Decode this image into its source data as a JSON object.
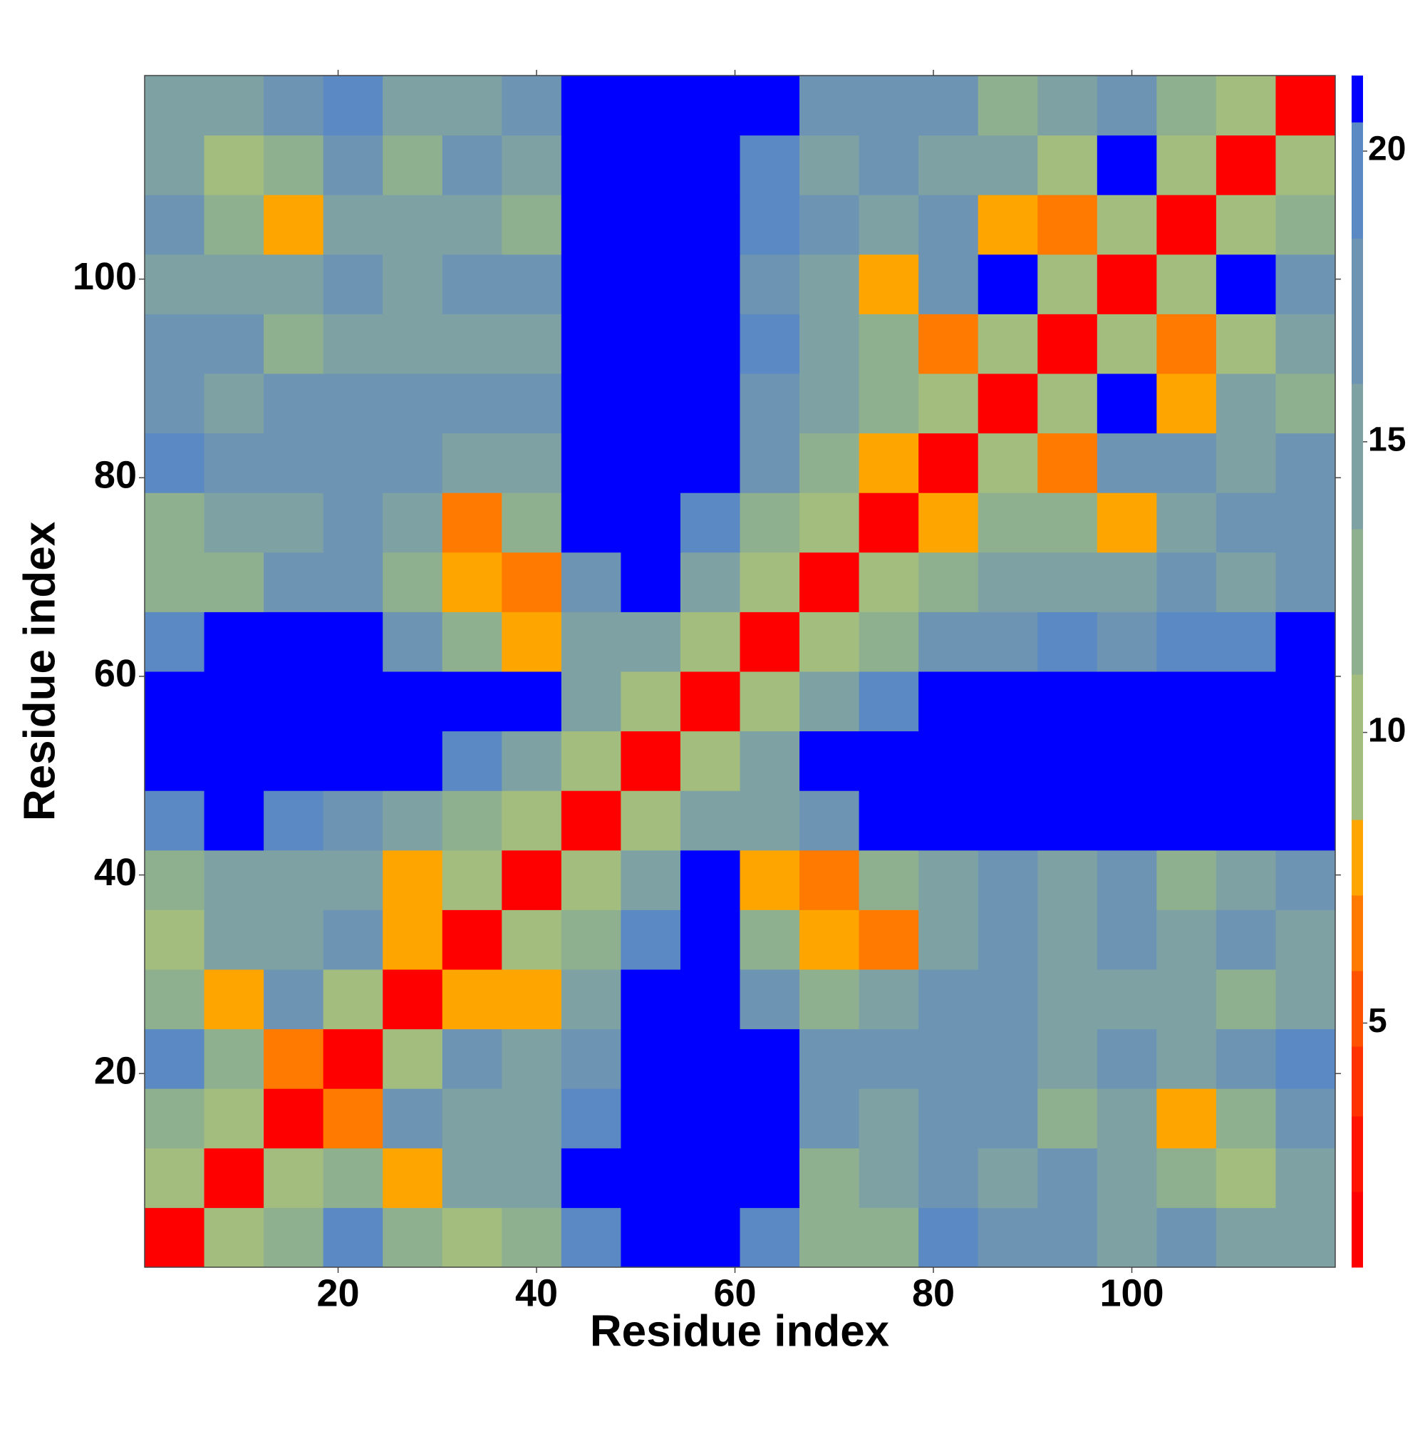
{
  "chart_data": {
    "type": "heatmap",
    "xlabel": "Residue index",
    "ylabel": "Residue index",
    "xlim": [
      0.5,
      120.5
    ],
    "ylim": [
      0.5,
      120.5
    ],
    "xticks": [
      20,
      40,
      60,
      80,
      100
    ],
    "yticks": [
      20,
      40,
      60,
      80,
      100
    ],
    "xbins": [
      0.5,
      6.5,
      12.5,
      18.5,
      24.5,
      30.5,
      36.5,
      42.5,
      48.5,
      54.5,
      60.5,
      66.5,
      72.5,
      78.5,
      84.5,
      90.5,
      96.5,
      102.5,
      108.5,
      114.5,
      120.5
    ],
    "ybins": [
      0.5,
      6.5,
      12.5,
      18.5,
      24.5,
      30.5,
      36.5,
      42.5,
      48.5,
      54.5,
      60.5,
      66.5,
      72.5,
      78.5,
      84.5,
      90.5,
      96.5,
      102.5,
      108.5,
      114.5,
      120.5
    ],
    "zlim": [
      0.8,
      21.3
    ],
    "zticks": [
      5,
      10,
      15,
      20
    ],
    "colormap": {
      "levels": [
        2.1,
        3.4,
        4.6,
        5.9,
        7.2,
        8.5,
        11,
        13.5,
        16,
        18.5,
        20.5
      ],
      "colors": [
        "#ff0000",
        "#ff1400",
        "#ff3200",
        "#ff5200",
        "#ff7a00",
        "#ffa500",
        "#a3bd7f",
        "#8fb08f",
        "#7ea2a3",
        "#6d95b3",
        "#5b89c3",
        "#0000ff"
      ]
    },
    "z": [
      [
        2,
        9,
        13,
        19,
        13,
        9,
        12,
        20,
        21,
        21,
        19,
        11,
        12,
        19,
        16,
        17,
        15,
        16,
        14,
        15
      ],
      [
        9,
        2,
        9,
        12,
        8,
        15,
        14,
        21,
        21,
        21,
        21,
        13,
        14,
        17,
        15,
        16,
        14,
        12,
        10,
        14
      ],
      [
        13,
        9,
        2,
        7,
        17,
        15,
        14,
        20,
        21,
        21,
        21,
        16,
        15,
        16,
        18,
        13,
        14,
        8,
        13,
        16
      ],
      [
        19,
        12,
        7,
        2,
        9,
        17,
        14,
        18,
        21,
        21,
        21,
        18,
        16,
        17,
        17,
        15,
        16,
        15,
        17,
        20
      ],
      [
        13,
        8,
        17,
        9,
        2,
        8,
        8,
        15,
        21,
        21,
        16,
        12,
        14,
        16,
        17,
        14,
        14,
        15,
        13,
        14
      ],
      [
        9,
        15,
        15,
        17,
        8,
        2,
        9,
        12,
        19,
        21,
        13,
        8,
        7,
        14,
        18,
        15,
        17,
        14,
        16,
        15
      ],
      [
        12,
        14,
        14,
        14,
        8,
        9,
        2,
        9,
        14,
        21,
        8,
        7,
        11,
        15,
        17,
        14,
        16,
        13,
        15,
        16
      ],
      [
        20,
        21,
        20,
        18,
        15,
        12,
        9,
        2,
        9,
        14,
        15,
        16,
        21,
        21,
        21,
        21,
        21,
        21,
        21,
        21
      ],
      [
        21,
        21,
        21,
        21,
        21,
        19,
        14,
        9,
        2,
        9,
        15,
        21,
        21,
        21,
        21,
        21,
        21,
        21,
        21,
        21
      ],
      [
        21,
        21,
        21,
        21,
        21,
        21,
        21,
        14,
        9,
        2,
        9,
        15,
        19,
        21,
        21,
        21,
        21,
        21,
        21,
        21
      ],
      [
        19,
        21,
        21,
        21,
        16,
        13,
        8,
        15,
        15,
        9,
        2,
        9,
        13,
        16,
        17,
        19,
        18,
        19,
        20,
        21
      ],
      [
        11,
        13,
        16,
        18,
        12,
        8,
        7,
        16,
        21,
        15,
        9,
        2,
        9,
        12,
        14,
        15,
        15,
        16,
        15,
        18
      ],
      [
        12,
        14,
        15,
        16,
        14,
        7,
        11,
        21,
        21,
        19,
        13,
        9,
        2,
        8,
        12,
        12,
        8,
        15,
        16,
        17
      ],
      [
        19,
        17,
        16,
        17,
        16,
        14,
        15,
        21,
        21,
        21,
        16,
        12,
        8,
        2,
        9,
        7,
        16,
        16,
        14,
        16
      ],
      [
        16,
        15,
        18,
        17,
        17,
        18,
        17,
        21,
        21,
        21,
        17,
        14,
        12,
        9,
        2,
        9,
        21,
        8,
        15,
        13
      ],
      [
        17,
        16,
        13,
        15,
        14,
        15,
        14,
        21,
        21,
        21,
        19,
        15,
        12,
        7,
        9,
        2,
        9,
        7,
        9,
        14
      ],
      [
        15,
        14,
        14,
        16,
        14,
        17,
        16,
        21,
        21,
        21,
        18,
        15,
        8,
        16,
        21,
        9,
        2,
        9,
        21,
        16
      ],
      [
        16,
        12,
        8,
        15,
        15,
        14,
        13,
        21,
        21,
        21,
        19,
        16,
        15,
        16,
        8,
        7,
        9,
        2,
        9,
        12
      ],
      [
        14,
        10,
        13,
        17,
        13,
        16,
        15,
        21,
        21,
        21,
        20,
        15,
        16,
        14,
        15,
        9,
        21,
        9,
        2,
        9
      ],
      [
        15,
        14,
        16,
        20,
        14,
        15,
        16,
        21,
        21,
        21,
        21,
        18,
        17,
        16,
        13,
        14,
        16,
        12,
        9,
        2
      ]
    ]
  }
}
